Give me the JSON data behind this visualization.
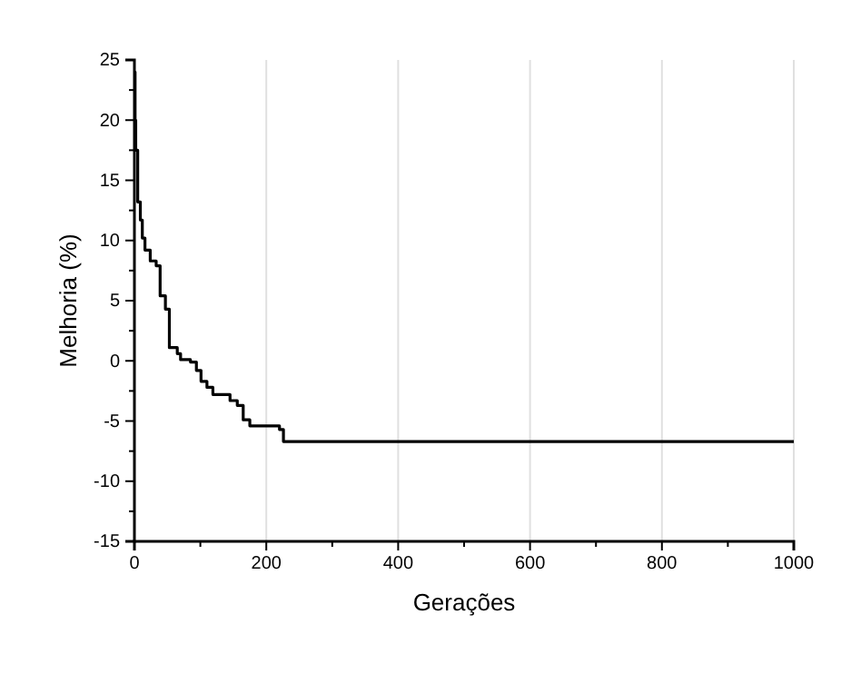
{
  "chart_data": {
    "type": "step",
    "xlabel": "Gerações",
    "ylabel": "Melhoria (%)",
    "x": [
      0,
      1,
      2,
      5,
      9,
      12,
      16,
      24,
      33,
      39,
      47,
      53,
      65,
      70,
      85,
      94,
      101,
      110,
      119,
      145,
      156,
      165,
      175,
      220,
      226,
      1000
    ],
    "values": [
      24,
      20,
      17.5,
      13.2,
      11.7,
      10.2,
      9.2,
      8.3,
      7.9,
      5.4,
      4.3,
      1.1,
      0.6,
      0.1,
      -0.1,
      -0.8,
      -1.7,
      -2.2,
      -2.8,
      -3.3,
      -3.7,
      -4.9,
      -5.4,
      -5.7,
      -6.7,
      -6.7
    ],
    "color": "#000000",
    "xlim": [
      0,
      1000
    ],
    "xticks": [
      0,
      200,
      400,
      600,
      800,
      1000
    ],
    "ylim": [
      -15,
      25
    ],
    "yticks": [
      -15,
      -10,
      -5,
      0,
      5,
      10,
      15,
      20,
      25
    ],
    "grid": "x"
  }
}
